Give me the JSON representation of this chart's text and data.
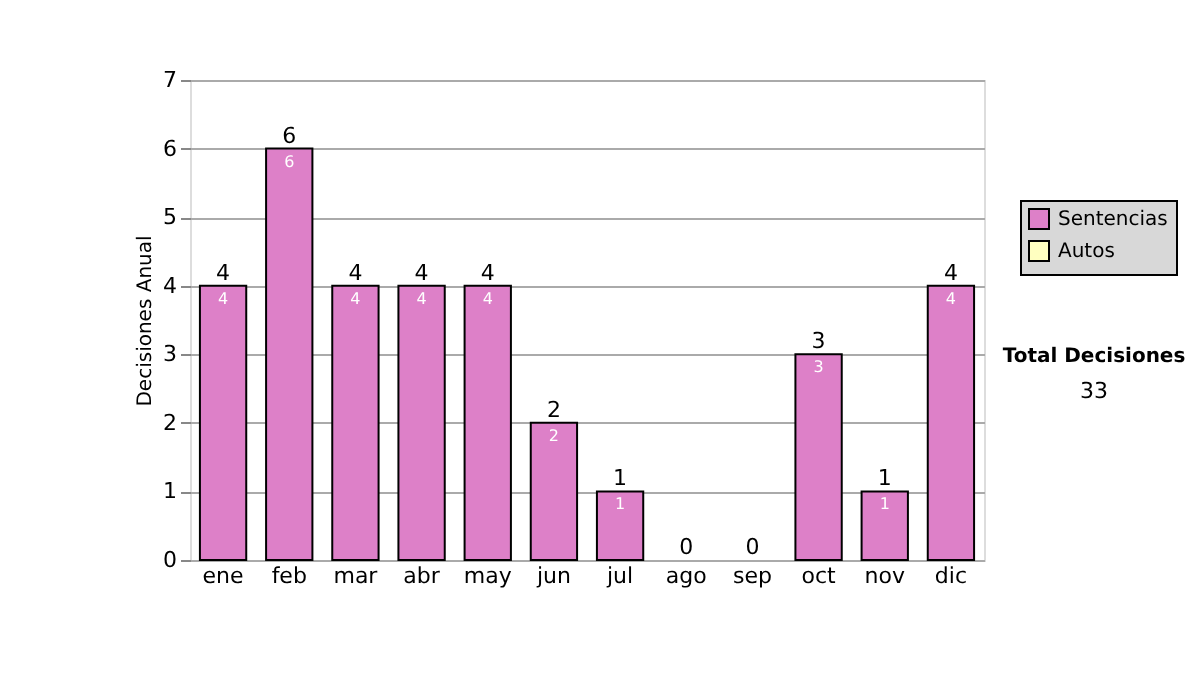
{
  "chart_data": {
    "type": "bar",
    "ylabel": "Decisiones Anual",
    "categories": [
      "ene",
      "feb",
      "mar",
      "abr",
      "may",
      "jun",
      "jul",
      "ago",
      "sep",
      "oct",
      "nov",
      "dic"
    ],
    "series": [
      {
        "name": "Sentencias",
        "color": "#dd80c8",
        "values": [
          4,
          6,
          4,
          4,
          4,
          2,
          1,
          0,
          0,
          3,
          1,
          4
        ],
        "value_labels": [
          "4",
          "6",
          "4",
          "4",
          "4",
          "2",
          "1",
          null,
          null,
          "3",
          "1",
          "4"
        ]
      },
      {
        "name": "Autos",
        "color": "#ffffc0",
        "values": [
          0,
          0,
          0,
          0,
          0,
          0,
          0,
          0,
          0,
          0,
          0,
          0
        ]
      }
    ],
    "stacked": true,
    "totals": [
      "4",
      "6",
      "4",
      "4",
      "4",
      "2",
      "1",
      "0",
      "0",
      "3",
      "1",
      "4"
    ],
    "ylim": [
      0,
      7
    ],
    "yticks": [
      0,
      1,
      2,
      3,
      4,
      5,
      6,
      7
    ],
    "grid": "y",
    "legend": "right",
    "annotations": [
      "Total Decisiones",
      "33"
    ]
  }
}
